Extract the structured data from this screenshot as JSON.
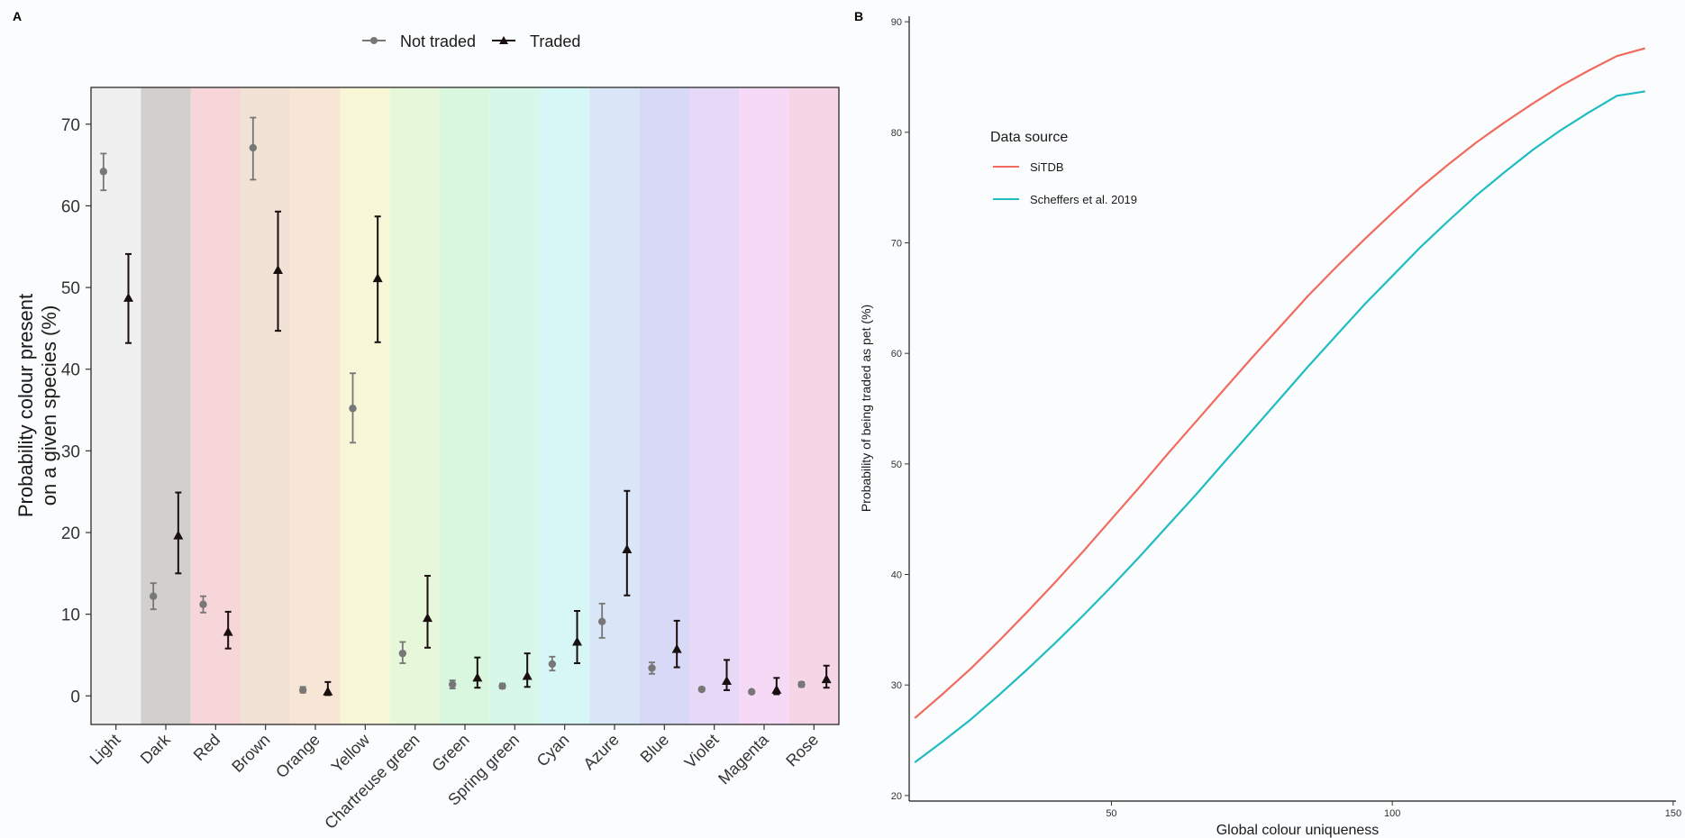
{
  "panel_a": {
    "label": "A"
  },
  "panel_b": {
    "label": "B"
  },
  "chart_data": [
    {
      "type": "scatter",
      "subtype": "point-with-errorbars",
      "panel": "A",
      "ylabel_line1": "Probability colour present",
      "ylabel_line2": "on a given species (%)",
      "xlabel": "",
      "ylim": [
        -3.5,
        74.5
      ],
      "yticks": [
        0,
        10,
        20,
        30,
        40,
        50,
        60,
        70
      ],
      "legend_position": "top",
      "grid": false,
      "categories": [
        "Light",
        "Dark",
        "Red",
        "Brown",
        "Orange",
        "Yellow",
        "Chartreuse green",
        "Green",
        "Spring green",
        "Cyan",
        "Azure",
        "Blue",
        "Violet",
        "Magenta",
        "Rose"
      ],
      "band_colors": [
        "#f0f0f0",
        "#d2d0cd",
        "#f7d6da",
        "#f1e2d5",
        "#f7e6d6",
        "#f7f7d8",
        "#e7f7da",
        "#d8f7de",
        "#d8f7eb",
        "#d6f7f6",
        "#d8e6f7",
        "#d8d8f7",
        "#e6d8f7",
        "#f6d8f7",
        "#f6d6e6"
      ],
      "series": [
        {
          "name": "Not traded",
          "marker": "circle",
          "color": "#777777",
          "values": [
            64.2,
            12.2,
            11.2,
            67.1,
            0.7,
            35.2,
            5.2,
            1.4,
            1.2,
            3.9,
            9.1,
            3.4,
            0.8,
            0.5,
            1.4
          ],
          "lower": [
            61.9,
            10.6,
            10.2,
            63.2,
            0.4,
            31.0,
            4.0,
            0.9,
            0.9,
            3.1,
            7.1,
            2.7,
            0.6,
            0.4,
            1.1
          ],
          "upper": [
            66.4,
            13.8,
            12.2,
            70.8,
            1.1,
            39.5,
            6.6,
            1.9,
            1.5,
            4.8,
            11.3,
            4.1,
            1.0,
            0.6,
            1.7
          ]
        },
        {
          "name": "Traded",
          "marker": "triangle",
          "color": "#1a0f0f",
          "values": [
            48.7,
            19.6,
            7.8,
            52.1,
            0.5,
            51.1,
            9.5,
            2.2,
            2.4,
            6.6,
            17.9,
            5.7,
            1.8,
            0.7,
            2.0
          ],
          "lower": [
            43.2,
            15.0,
            5.8,
            44.7,
            0.1,
            43.3,
            5.9,
            1.0,
            1.1,
            4.0,
            12.3,
            3.5,
            0.7,
            0.2,
            1.0
          ],
          "upper": [
            54.1,
            24.9,
            10.3,
            59.3,
            1.7,
            58.7,
            14.7,
            4.7,
            5.2,
            10.4,
            25.1,
            9.2,
            4.4,
            2.2,
            3.7
          ]
        }
      ]
    },
    {
      "type": "line",
      "panel": "B",
      "xlabel": "Global colour uniqueness",
      "ylabel": "Probability of being traded as pet (%)",
      "xlim": [
        14,
        150.5
      ],
      "ylim": [
        19.5,
        90.5
      ],
      "xticks": [
        50,
        100,
        150
      ],
      "yticks": [
        20,
        30,
        40,
        50,
        60,
        70,
        80,
        90
      ],
      "grid": false,
      "legend_title": "Data source",
      "legend_position": "top-left",
      "series": [
        {
          "name": "SiTDB",
          "color": "#f06b5e",
          "x": [
            15,
            20,
            25,
            30,
            35,
            40,
            45,
            50,
            55,
            60,
            65,
            70,
            75,
            80,
            85,
            90,
            95,
            100,
            105,
            110,
            115,
            120,
            125,
            130,
            135,
            140,
            145
          ],
          "y": [
            27.0,
            29.2,
            31.5,
            34.0,
            36.6,
            39.3,
            42.1,
            45.0,
            47.9,
            50.9,
            53.8,
            56.7,
            59.6,
            62.4,
            65.2,
            67.8,
            70.3,
            72.7,
            75.0,
            77.1,
            79.1,
            80.9,
            82.6,
            84.2,
            85.6,
            86.9,
            87.6
          ]
        },
        {
          "name": "Scheffers et al. 2019",
          "color": "#1fbcc2",
          "x": [
            15,
            20,
            25,
            30,
            35,
            40,
            45,
            50,
            55,
            60,
            65,
            70,
            75,
            80,
            85,
            90,
            95,
            100,
            105,
            110,
            115,
            120,
            125,
            130,
            135,
            140,
            145
          ],
          "y": [
            23.0,
            24.9,
            26.9,
            29.1,
            31.4,
            33.8,
            36.3,
            38.9,
            41.6,
            44.4,
            47.2,
            50.1,
            53.0,
            55.9,
            58.8,
            61.6,
            64.4,
            67.0,
            69.6,
            72.0,
            74.3,
            76.4,
            78.4,
            80.2,
            81.8,
            83.3,
            83.7
          ]
        }
      ]
    }
  ]
}
